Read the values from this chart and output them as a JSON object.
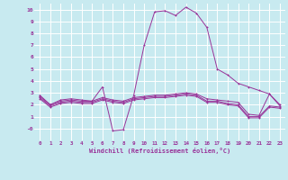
{
  "bg_color": "#c8eaf0",
  "line_color": "#993399",
  "grid_color": "#ffffff",
  "title": "",
  "xlabel": "Windchill (Refroidissement éolien,°C)",
  "ylabel": "",
  "xlim": [
    -0.5,
    23.5
  ],
  "ylim": [
    -1.0,
    10.5
  ],
  "xticks": [
    0,
    1,
    2,
    3,
    4,
    5,
    6,
    7,
    8,
    9,
    10,
    11,
    12,
    13,
    14,
    15,
    16,
    17,
    18,
    19,
    20,
    21,
    22,
    23
  ],
  "yticks": [
    0,
    1,
    2,
    3,
    4,
    5,
    6,
    7,
    8,
    9,
    10
  ],
  "ytick_labels": [
    "-0",
    "1",
    "2",
    "3",
    "4",
    "5",
    "6",
    "7",
    "8",
    "9",
    "10"
  ],
  "line1_x": [
    0,
    1,
    2,
    3,
    4,
    5,
    6,
    7,
    8,
    9,
    10,
    11,
    12,
    13,
    14,
    15,
    16,
    17,
    18,
    19,
    20,
    21,
    22,
    23
  ],
  "line1_y": [
    2.8,
    2.0,
    2.4,
    2.5,
    2.4,
    2.3,
    3.5,
    -0.2,
    -0.1,
    2.8,
    7.0,
    9.8,
    9.9,
    9.5,
    10.2,
    9.7,
    8.5,
    5.0,
    4.5,
    3.8,
    3.5,
    3.2,
    2.9,
    2.0
  ],
  "line2_x": [
    0,
    1,
    2,
    3,
    4,
    5,
    6,
    7,
    8,
    9,
    10,
    11,
    12,
    13,
    14,
    15,
    16,
    17,
    18,
    19,
    20,
    21,
    22,
    23
  ],
  "line2_y": [
    2.7,
    2.0,
    2.3,
    2.4,
    2.3,
    2.3,
    2.6,
    2.4,
    2.3,
    2.6,
    2.7,
    2.8,
    2.8,
    2.9,
    3.0,
    2.9,
    2.5,
    2.4,
    2.3,
    2.2,
    1.2,
    1.1,
    2.9,
    1.9
  ],
  "line3_x": [
    0,
    1,
    2,
    3,
    4,
    5,
    6,
    7,
    8,
    9,
    10,
    11,
    12,
    13,
    14,
    15,
    16,
    17,
    18,
    19,
    20,
    21,
    22,
    23
  ],
  "line3_y": [
    2.6,
    1.9,
    2.2,
    2.3,
    2.2,
    2.2,
    2.5,
    2.3,
    2.2,
    2.5,
    2.6,
    2.7,
    2.7,
    2.8,
    2.9,
    2.8,
    2.3,
    2.3,
    2.1,
    2.0,
    1.0,
    1.0,
    1.9,
    1.8
  ],
  "line4_x": [
    0,
    1,
    2,
    3,
    4,
    5,
    6,
    7,
    8,
    9,
    10,
    11,
    12,
    13,
    14,
    15,
    16,
    17,
    18,
    19,
    20,
    21,
    22,
    23
  ],
  "line4_y": [
    2.5,
    1.8,
    2.1,
    2.2,
    2.1,
    2.1,
    2.4,
    2.2,
    2.1,
    2.4,
    2.5,
    2.6,
    2.6,
    2.7,
    2.8,
    2.7,
    2.2,
    2.2,
    2.0,
    1.9,
    0.9,
    0.9,
    1.8,
    1.7
  ],
  "fig_width": 3.2,
  "fig_height": 2.0,
  "dpi": 100
}
